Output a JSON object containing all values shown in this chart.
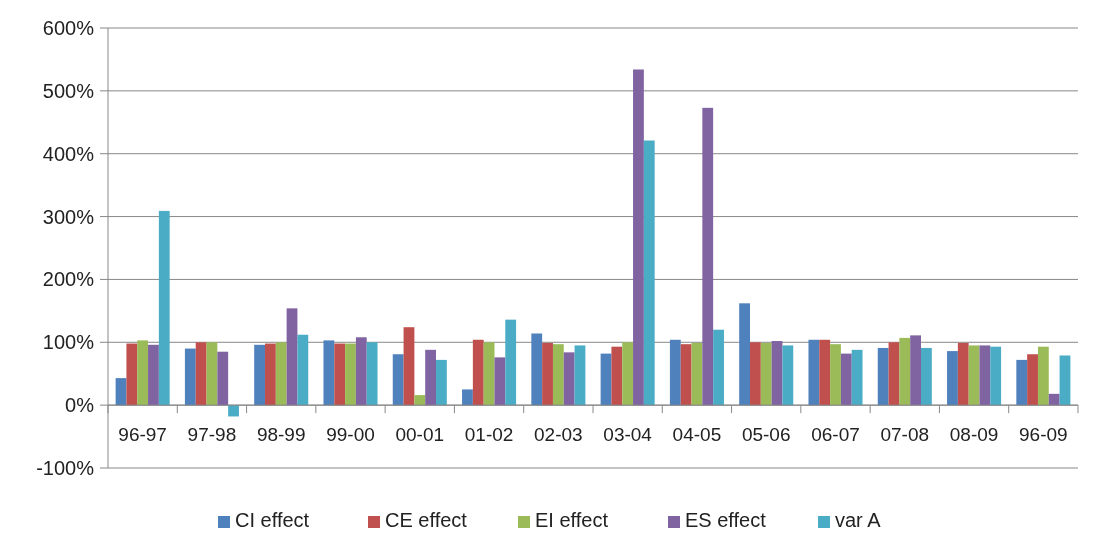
{
  "chart_data": {
    "type": "bar",
    "categories": [
      "96-97",
      "97-98",
      "98-99",
      "99-00",
      "00-01",
      "01-02",
      "02-03",
      "03-04",
      "04-05",
      "05-06",
      "06-07",
      "07-08",
      "08-09",
      "96-09"
    ],
    "series": [
      {
        "name": "CI effect",
        "color": "#4f81bd",
        "values": [
          43,
          90,
          96,
          103,
          81,
          25,
          114,
          82,
          104,
          162,
          104,
          91,
          86,
          72
        ]
      },
      {
        "name": "CE effect",
        "color": "#c0504d",
        "values": [
          98,
          100,
          98,
          98,
          124,
          104,
          99,
          93,
          97,
          100,
          104,
          100,
          99,
          81
        ]
      },
      {
        "name": "EI effect",
        "color": "#9bbb59",
        "values": [
          103,
          100,
          100,
          98,
          16,
          100,
          97,
          100,
          99,
          99,
          97,
          107,
          95,
          93
        ]
      },
      {
        "name": "ES effect",
        "color": "#8064a2",
        "values": [
          96,
          85,
          154,
          108,
          88,
          76,
          84,
          534,
          473,
          102,
          82,
          111,
          95,
          18
        ]
      },
      {
        "name": "var A",
        "color": "#4bacc6",
        "values": [
          309,
          -18,
          112,
          100,
          72,
          136,
          95,
          421,
          120,
          95,
          88,
          91,
          93,
          79
        ]
      }
    ],
    "ylim": [
      -100,
      600
    ],
    "yticks": [
      {
        "value": -100,
        "label": "-100%"
      },
      {
        "value": 0,
        "label": "0%"
      },
      {
        "value": 100,
        "label": "100%"
      },
      {
        "value": 200,
        "label": "200%"
      },
      {
        "value": 300,
        "label": "300%"
      },
      {
        "value": 400,
        "label": "400%"
      },
      {
        "value": 500,
        "label": "500%"
      },
      {
        "value": 600,
        "label": "600%"
      }
    ],
    "grid": "y",
    "legend": "bottom"
  }
}
